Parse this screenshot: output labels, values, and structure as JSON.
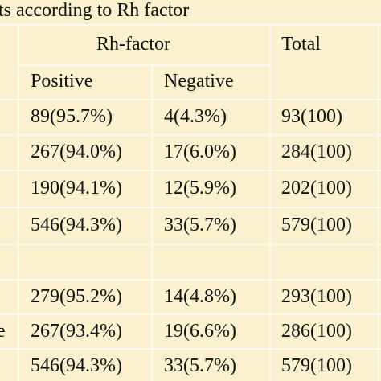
{
  "title": "ts according to Rh factor",
  "table": {
    "group_header": "Rh-factor",
    "total_header": "Total",
    "subheaders": [
      "Positive",
      "Negative"
    ],
    "rows": [
      {
        "cells": [
          "89(95.7%)",
          "4(4.3%)",
          "93(100)"
        ]
      },
      {
        "cells": [
          "267(94.0%)",
          "17(6.0%)",
          "284(100)"
        ]
      },
      {
        "cells": [
          "190(94.1%)",
          "12(5.9%)",
          "202(100)"
        ]
      },
      {
        "cells": [
          "546(94.3%)",
          "33(5.7%)",
          "579(100)"
        ]
      },
      {
        "cells": []
      },
      {
        "cells": [
          "279(95.2%)",
          "14(4.8%)",
          "293(100)"
        ]
      },
      {
        "label": "e",
        "cells": [
          "267(93.4%)",
          "19(6.6%)",
          "286(100)"
        ]
      },
      {
        "cells": [
          "546(94.3%)",
          "33(5.7%)",
          "579(100)"
        ]
      }
    ]
  }
}
